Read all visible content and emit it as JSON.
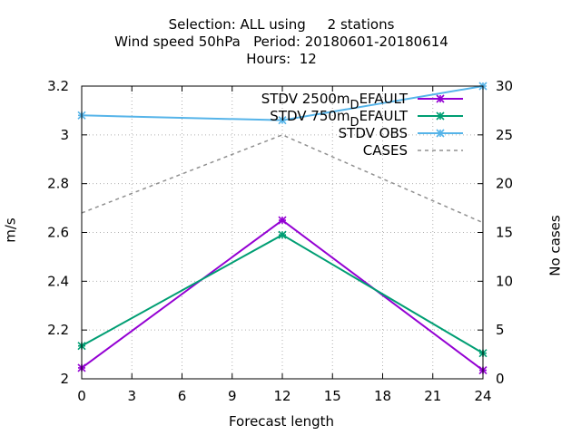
{
  "chart_data": {
    "type": "line",
    "title_lines": [
      "Selection: ALL using     2 stations",
      "Wind speed 50hPa   Period: 20180601-20180614",
      "Hours:  12"
    ],
    "xlabel": "Forecast length",
    "ylabel": "m/s",
    "y2label": "No cases",
    "x": [
      0,
      12,
      24
    ],
    "xlim": [
      0,
      24
    ],
    "xticks": [
      "0",
      "3",
      "6",
      "9",
      "12",
      "15",
      "18",
      "21",
      "24"
    ],
    "ylim": [
      2,
      3.2
    ],
    "yticks": [
      "2",
      "2.2",
      "2.4",
      "2.6",
      "2.8",
      "3",
      "3.2"
    ],
    "y2lim": [
      0,
      30
    ],
    "y2ticks": [
      "0",
      "5",
      "10",
      "15",
      "20",
      "25",
      "30"
    ],
    "grid": true,
    "legend_position": "top-right",
    "series": [
      {
        "name": "STDV 2500m_DEFAULT",
        "legend_main": "STDV 2500m",
        "legend_sub": "D",
        "legend_rest": "EFAULT",
        "axis": "y1",
        "color": "#9400d3",
        "marker": "x",
        "dash": false,
        "values": [
          2.045,
          2.65,
          2.035
        ]
      },
      {
        "name": "STDV 750m_DEFAULT",
        "legend_main": "STDV 750m",
        "legend_sub": "D",
        "legend_rest": "EFAULT",
        "axis": "y1",
        "color": "#009e73",
        "marker": "x",
        "dash": false,
        "values": [
          2.135,
          2.59,
          2.105
        ]
      },
      {
        "name": "STDV OBS",
        "legend_main": "STDV OBS",
        "legend_sub": "",
        "legend_rest": "",
        "axis": "y1",
        "color": "#56b4e9",
        "marker": "x",
        "dash": false,
        "values": [
          3.08,
          3.06,
          3.2
        ]
      },
      {
        "name": "CASES",
        "legend_main": "CASES",
        "legend_sub": "",
        "legend_rest": "",
        "axis": "y2",
        "color": "#909090",
        "marker": "none",
        "dash": true,
        "values": [
          17,
          25,
          16
        ]
      }
    ]
  }
}
